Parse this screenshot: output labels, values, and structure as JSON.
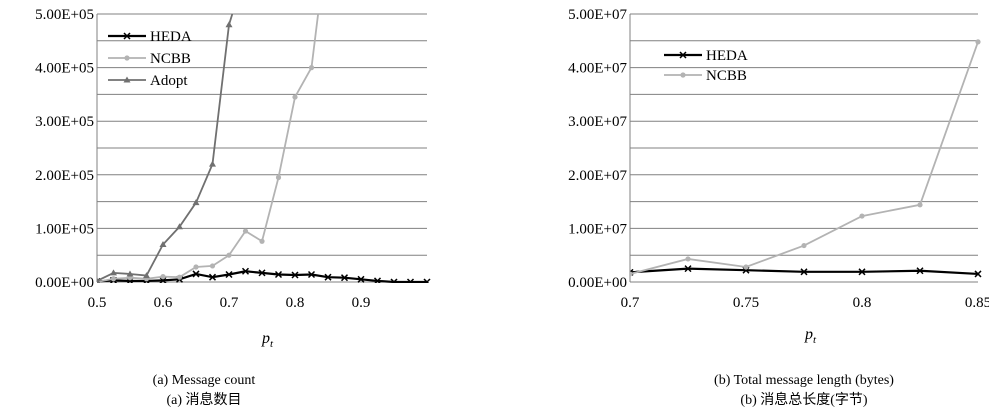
{
  "chart_data": [
    {
      "type": "line",
      "xlabel": "p",
      "xlabel_sub": "t",
      "caption": "(a) Message count",
      "caption_cn": "(a) 消息数目",
      "xlim": [
        0.5,
        1.0
      ],
      "ylim": [
        0,
        500000
      ],
      "x_ticks": [
        0.5,
        0.6,
        0.7,
        0.8,
        0.9
      ],
      "x_tick_labels": [
        "0.5",
        "0.6",
        "0.7",
        "0.8",
        "0.9"
      ],
      "y_ticks": [
        0,
        100000,
        200000,
        300000,
        400000,
        500000
      ],
      "y_tick_labels": [
        "0.00E+00",
        "1.00E+05",
        "2.00E+05",
        "3.00E+05",
        "4.00E+05",
        "5.00E+05"
      ],
      "grid_step": 50000,
      "legend_position": "top-left",
      "series": [
        {
          "name": "HEDA",
          "color": "#000000",
          "marker": "x",
          "x": [
            0.5,
            0.525,
            0.55,
            0.575,
            0.6,
            0.625,
            0.65,
            0.675,
            0.7,
            0.725,
            0.75,
            0.775,
            0.8,
            0.825,
            0.85,
            0.875,
            0.9,
            0.925,
            0.95,
            0.975,
            1.0
          ],
          "y": [
            1000,
            3000,
            2000,
            2000,
            3000,
            5000,
            15000,
            9000,
            14000,
            20000,
            17000,
            14000,
            13000,
            14000,
            9000,
            8000,
            5000,
            2000,
            0,
            0,
            0
          ]
        },
        {
          "name": "NCBB",
          "color": "#b3b3b3",
          "marker": "circle",
          "x": [
            0.5,
            0.525,
            0.55,
            0.575,
            0.6,
            0.625,
            0.65,
            0.675,
            0.7,
            0.725,
            0.75,
            0.775,
            0.8,
            0.825,
            0.835
          ],
          "y": [
            0,
            6000,
            8000,
            6000,
            10000,
            9000,
            28000,
            30000,
            50000,
            95000,
            76000,
            195000,
            345000,
            400000,
            500000
          ]
        },
        {
          "name": "Adopt",
          "color": "#707070",
          "marker": "triangle",
          "x": [
            0.5,
            0.525,
            0.55,
            0.575,
            0.6,
            0.625,
            0.65,
            0.675,
            0.7,
            0.705
          ],
          "y": [
            2000,
            17000,
            15000,
            12000,
            70000,
            103000,
            148000,
            220000,
            480000,
            500000
          ]
        }
      ]
    },
    {
      "type": "line",
      "xlabel": "p",
      "xlabel_sub": "t",
      "caption": "(b) Total message length (bytes)",
      "caption_cn": "(b) 消息总长度(字节)",
      "xlim": [
        0.7,
        0.85
      ],
      "ylim": [
        0,
        50000000
      ],
      "x_ticks": [
        0.7,
        0.75,
        0.8,
        0.85
      ],
      "x_tick_labels": [
        "0.7",
        "0.75",
        "0.8",
        "0.85"
      ],
      "y_ticks": [
        0,
        10000000,
        20000000,
        30000000,
        40000000,
        50000000
      ],
      "y_tick_labels": [
        "0.00E+00",
        "1.00E+07",
        "2.00E+07",
        "3.00E+07",
        "4.00E+07",
        "5.00E+07"
      ],
      "grid_step": 5000000,
      "legend_position": "top-left",
      "series": [
        {
          "name": "HEDA",
          "color": "#000000",
          "marker": "x",
          "x": [
            0.7,
            0.725,
            0.75,
            0.775,
            0.8,
            0.825,
            0.85
          ],
          "y": [
            1800000,
            2500000,
            2200000,
            1900000,
            1900000,
            2100000,
            1500000
          ]
        },
        {
          "name": "NCBB",
          "color": "#b3b3b3",
          "marker": "circle",
          "x": [
            0.7,
            0.725,
            0.75,
            0.775,
            0.8,
            0.825,
            0.85
          ],
          "y": [
            1500000,
            4300000,
            2800000,
            6800000,
            12300000,
            14400000,
            44800000
          ]
        }
      ]
    }
  ]
}
